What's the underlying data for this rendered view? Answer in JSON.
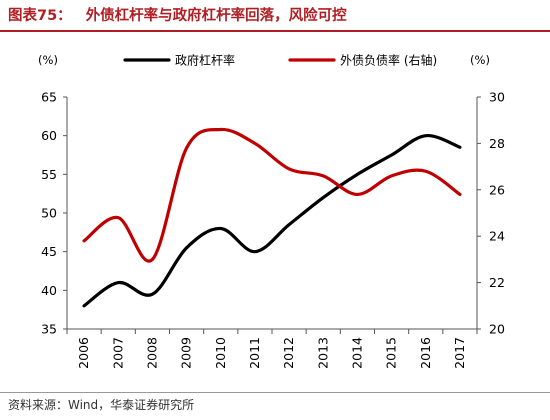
{
  "figure": {
    "label": "图表75：",
    "title": "外债杠杆率与政府杠杆率回落，风险可控",
    "source": "资料来源：Wind，华泰证券研究所"
  },
  "chart_data": {
    "type": "line",
    "categories": [
      "2006",
      "2007",
      "2008",
      "2009",
      "2010",
      "2011",
      "2012",
      "2013",
      "2014",
      "2015",
      "2016",
      "2017"
    ],
    "series": [
      {
        "name": "政府杠杆率",
        "axis": "left",
        "color": "#000000",
        "values": [
          38.0,
          41.0,
          39.5,
          45.5,
          48.0,
          45.0,
          48.5,
          52.0,
          55.0,
          57.5,
          60.0,
          58.5
        ]
      },
      {
        "name": "外债负债率 (右轴)",
        "axis": "right",
        "color": "#c00000",
        "values": [
          23.8,
          24.8,
          23.0,
          27.8,
          28.6,
          28.0,
          26.9,
          26.6,
          25.8,
          26.6,
          26.8,
          25.8
        ]
      }
    ],
    "y_left": {
      "unit": "(%)",
      "min": 35,
      "max": 65,
      "ticks": [
        35,
        40,
        45,
        50,
        55,
        60,
        65
      ]
    },
    "y_right": {
      "unit": "(%)",
      "min": 20,
      "max": 30,
      "ticks": [
        20,
        22,
        24,
        26,
        28,
        30
      ]
    },
    "legend_position": "top",
    "grid": false
  }
}
